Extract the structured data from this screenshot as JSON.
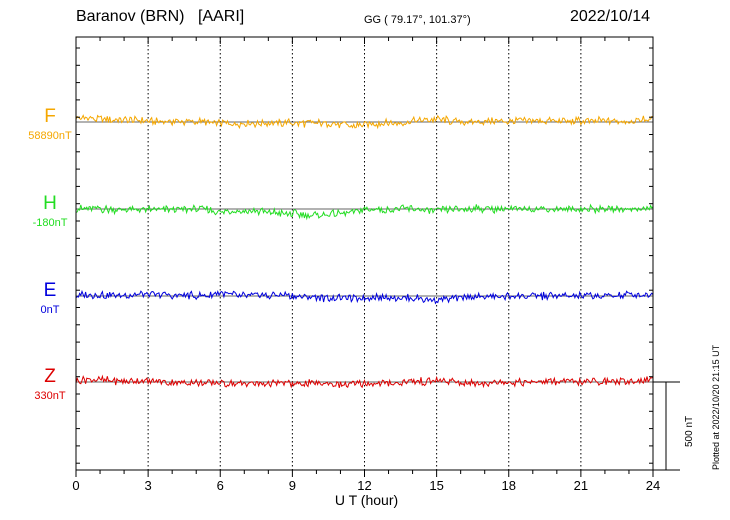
{
  "header": {
    "station": "Baranov (BRN)",
    "code": "[AARI]",
    "coords": "GG ( 79.17°, 101.37°)",
    "date": "2022/10/14"
  },
  "footer": {
    "plotted": "Plotted at 2022/10/20 21:15 UT"
  },
  "chart_data": {
    "type": "line",
    "xlabel": "U T (hour)",
    "xlim": [
      0,
      24
    ],
    "xticks": [
      "0",
      "3",
      "6",
      "9",
      "12",
      "15",
      "18",
      "21",
      "24"
    ],
    "grid": true,
    "scale_bar": {
      "label": "500 nT",
      "value_nT": 500
    },
    "series": [
      {
        "name": "F",
        "baseline": "58890nT",
        "color": "#f5a700",
        "x": [
          0,
          0.5,
          1,
          1.5,
          2,
          2.5,
          3,
          3.5,
          4,
          4.5,
          5,
          5.5,
          6,
          6.5,
          7,
          7.5,
          8,
          8.5,
          9,
          9.5,
          10,
          10.5,
          11,
          11.5,
          12,
          12.5,
          13,
          13.5,
          14,
          14.5,
          15,
          15.5,
          16,
          16.5,
          17,
          17.5,
          18,
          18.5,
          19,
          19.5,
          20,
          20.5,
          21,
          21.5,
          22,
          22.5,
          23,
          23.5,
          24
        ],
        "values": [
          25,
          22,
          20,
          15,
          12,
          8,
          8,
          2,
          5,
          0,
          2,
          -2,
          -5,
          -12,
          -8,
          -10,
          -5,
          -8,
          -5,
          -8,
          -5,
          -8,
          -15,
          -25,
          -18,
          -10,
          -8,
          -5,
          5,
          10,
          18,
          8,
          0,
          2,
          5,
          3,
          2,
          5,
          6,
          8,
          5,
          6,
          7,
          5,
          8,
          5,
          3,
          12,
          20
        ]
      },
      {
        "name": "H",
        "baseline": "-180nT",
        "color": "#22dd22",
        "x": [
          0,
          0.5,
          1,
          1.5,
          2,
          2.5,
          3,
          3.5,
          4,
          4.5,
          5,
          5.5,
          6,
          6.5,
          7,
          7.5,
          8,
          8.5,
          9,
          9.5,
          10,
          10.5,
          11,
          11.5,
          12,
          12.5,
          13,
          13.5,
          14,
          14.5,
          15,
          15.5,
          16,
          16.5,
          17,
          17.5,
          18,
          18.5,
          19,
          19.5,
          20,
          20.5,
          21,
          21.5,
          22,
          22.5,
          23,
          23.5,
          24
        ],
        "values": [
          5,
          0,
          0,
          -2,
          -5,
          -3,
          -5,
          -5,
          -2,
          0,
          0,
          -5,
          -20,
          -10,
          -15,
          -15,
          -20,
          -25,
          -30,
          -35,
          -38,
          -35,
          -30,
          -20,
          -5,
          0,
          -2,
          0,
          0,
          -5,
          -15,
          -2,
          0,
          2,
          0,
          2,
          0,
          2,
          0,
          1,
          0,
          1,
          0,
          1,
          0,
          0,
          2,
          0,
          10
        ]
      },
      {
        "name": "E",
        "baseline": "0nT",
        "color": "#0000dd",
        "x": [
          0,
          0.5,
          1,
          1.5,
          2,
          2.5,
          3,
          3.5,
          4,
          4.5,
          5,
          5.5,
          6,
          6.5,
          7,
          7.5,
          8,
          8.5,
          9,
          9.5,
          10,
          10.5,
          11,
          11.5,
          12,
          12.5,
          13,
          13.5,
          14,
          14.5,
          15,
          15.5,
          16,
          16.5,
          17,
          17.5,
          18,
          18.5,
          19,
          19.5,
          20,
          20.5,
          21,
          21.5,
          22,
          22.5,
          23,
          23.5,
          24
        ],
        "values": [
          5,
          10,
          8,
          5,
          2,
          10,
          5,
          10,
          2,
          5,
          0,
          2,
          20,
          8,
          0,
          5,
          0,
          10,
          2,
          -5,
          -10,
          -12,
          -10,
          -15,
          -10,
          -5,
          -8,
          -12,
          -15,
          -18,
          -22,
          -18,
          -12,
          -8,
          -5,
          0,
          -2,
          0,
          -2,
          0,
          -2,
          0,
          -2,
          0,
          2,
          5,
          10,
          5,
          10
        ]
      },
      {
        "name": "Z",
        "baseline": "330nT",
        "color": "#dd0000",
        "x": [
          0,
          0.5,
          1,
          1.5,
          2,
          2.5,
          3,
          3.5,
          4,
          4.5,
          5,
          5.5,
          6,
          6.5,
          7,
          7.5,
          8,
          8.5,
          9,
          9.5,
          10,
          10.5,
          11,
          11.5,
          12,
          12.5,
          13,
          13.5,
          14,
          14.5,
          15,
          15.5,
          16,
          16.5,
          17,
          17.5,
          18,
          18.5,
          19,
          19.5,
          20,
          20.5,
          21,
          21.5,
          22,
          22.5,
          23,
          23.5,
          24
        ],
        "values": [
          10,
          18,
          12,
          10,
          5,
          8,
          2,
          0,
          -2,
          -5,
          -3,
          -5,
          -8,
          -12,
          -10,
          -8,
          -10,
          -8,
          -12,
          -10,
          -8,
          -10,
          -12,
          -15,
          -12,
          -8,
          -5,
          -2,
          5,
          2,
          10,
          0,
          -5,
          -8,
          -5,
          -3,
          -2,
          -1,
          -2,
          0,
          1,
          2,
          1,
          3,
          3,
          5,
          5,
          8,
          15
        ]
      }
    ]
  }
}
